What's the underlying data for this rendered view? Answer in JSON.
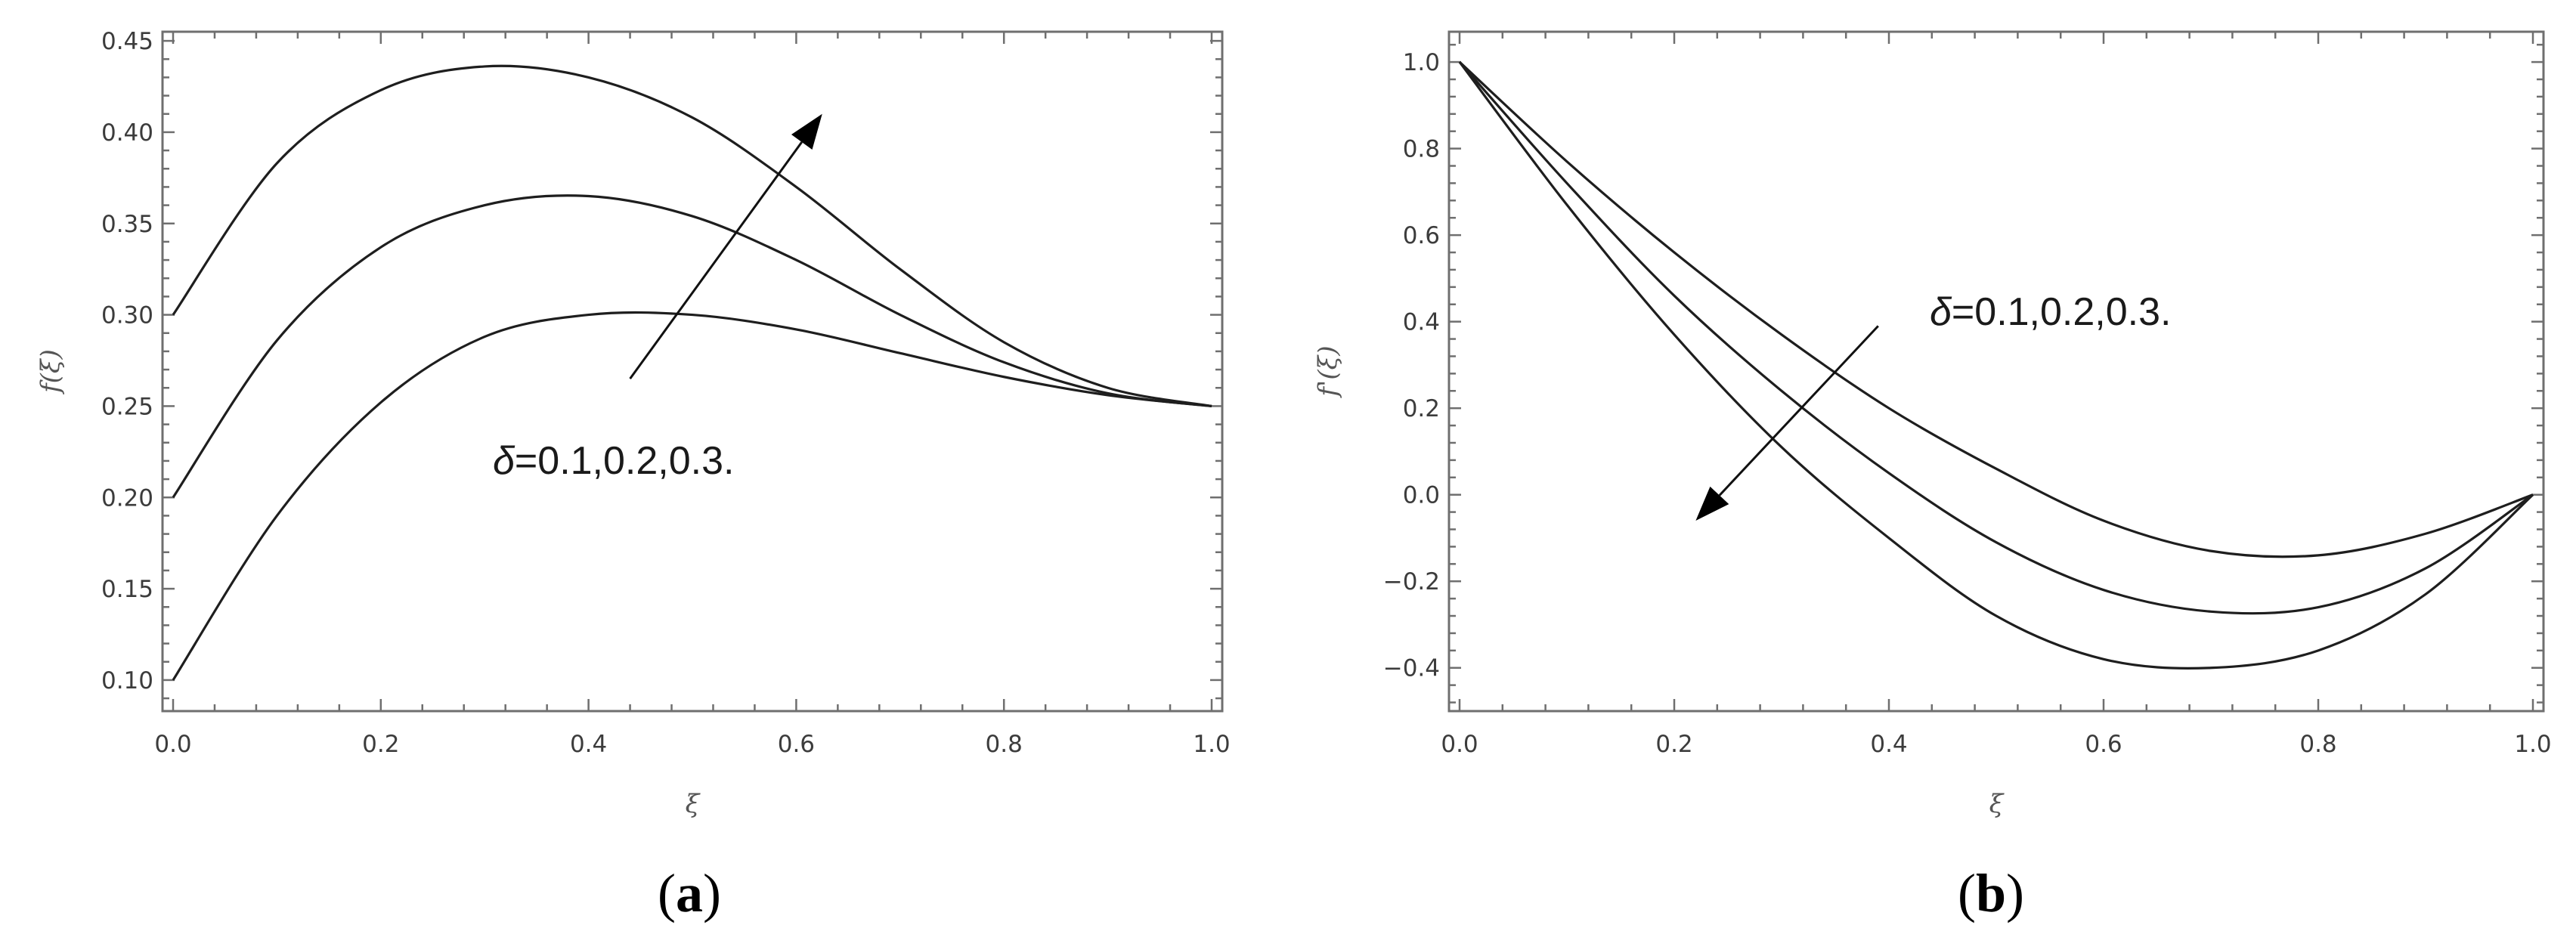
{
  "chart_data": [
    {
      "type": "line",
      "panel_label": "(a)",
      "panel_label_parts": {
        "open": "(",
        "letter": "a",
        "close": ")"
      },
      "xlabel": "ξ",
      "ylabel": "f(ξ)",
      "xlim": [
        0.0,
        1.0
      ],
      "ylim": [
        0.083,
        0.455
      ],
      "xticks": [
        "0.0",
        "0.2",
        "0.4",
        "0.6",
        "0.8",
        "1.0"
      ],
      "yticks": [
        "0.10",
        "0.15",
        "0.20",
        "0.25",
        "0.30",
        "0.35",
        "0.40",
        "0.45"
      ],
      "annotation": {
        "symbol": "δ",
        "text": "=0.1,0.2,0.3.",
        "arrow_from": [
          0.44,
          0.265
        ],
        "arrow_to": [
          0.625,
          0.41
        ]
      },
      "series": [
        {
          "x": [
            0,
            0.1,
            0.2,
            0.3,
            0.4,
            0.5,
            0.6,
            0.7,
            0.8,
            0.9,
            1.0
          ],
          "values": [
            0.1,
            0.19,
            0.252,
            0.288,
            0.3,
            0.3,
            0.292,
            0.279,
            0.266,
            0.256,
            0.25
          ]
        },
        {
          "x": [
            0,
            0.1,
            0.2,
            0.3,
            0.4,
            0.5,
            0.6,
            0.7,
            0.8,
            0.9,
            1.0
          ],
          "values": [
            0.2,
            0.286,
            0.337,
            0.36,
            0.365,
            0.354,
            0.33,
            0.3,
            0.274,
            0.257,
            0.25
          ]
        },
        {
          "x": [
            0,
            0.1,
            0.2,
            0.3,
            0.4,
            0.5,
            0.6,
            0.7,
            0.8,
            0.9,
            1.0
          ],
          "values": [
            0.3,
            0.383,
            0.423,
            0.436,
            0.43,
            0.408,
            0.37,
            0.325,
            0.285,
            0.26,
            0.25
          ]
        }
      ]
    },
    {
      "type": "line",
      "panel_label": "(b)",
      "panel_label_parts": {
        "open": "(",
        "letter": "b",
        "close": ")"
      },
      "xlabel": "ξ",
      "ylabel": "f'(ξ)",
      "xlim": [
        0.0,
        1.0
      ],
      "ylim": [
        -0.5,
        1.07
      ],
      "xticks": [
        "0.0",
        "0.2",
        "0.4",
        "0.6",
        "0.8",
        "1.0"
      ],
      "yticks": [
        "-0.4",
        "-0.2",
        "0.0",
        "0.2",
        "0.4",
        "0.6",
        "0.8",
        "1.0"
      ],
      "annotation": {
        "symbol": "δ",
        "text": "=0.1,0.2,0.3.",
        "arrow_from": [
          0.39,
          0.39
        ],
        "arrow_to": [
          0.22,
          -0.06
        ]
      },
      "series": [
        {
          "x": [
            0,
            0.1,
            0.2,
            0.3,
            0.4,
            0.5,
            0.6,
            0.7,
            0.8,
            0.9,
            1.0
          ],
          "values": [
            1.0,
            0.77,
            0.56,
            0.37,
            0.2,
            0.06,
            -0.06,
            -0.13,
            -0.14,
            -0.09,
            0.0
          ]
        },
        {
          "x": [
            0,
            0.1,
            0.2,
            0.3,
            0.4,
            0.5,
            0.6,
            0.7,
            0.8,
            0.9,
            1.0
          ],
          "values": [
            1.0,
            0.72,
            0.46,
            0.24,
            0.05,
            -0.11,
            -0.22,
            -0.27,
            -0.26,
            -0.17,
            0.0
          ]
        },
        {
          "x": [
            0,
            0.1,
            0.2,
            0.3,
            0.4,
            0.5,
            0.6,
            0.7,
            0.8,
            0.9,
            1.0
          ],
          "values": [
            1.0,
            0.67,
            0.37,
            0.11,
            -0.1,
            -0.28,
            -0.38,
            -0.4,
            -0.36,
            -0.23,
            0.0
          ]
        }
      ]
    }
  ]
}
